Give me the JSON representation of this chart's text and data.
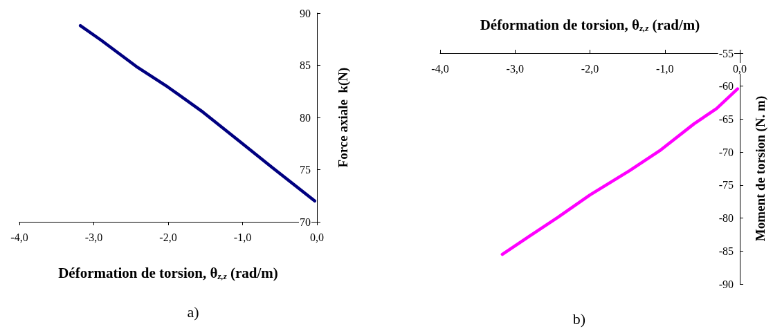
{
  "chart_data": [
    {
      "type": "line",
      "xlabel": "Déformation de torsion, θ$_{z,z}$ (rad/m)",
      "ylabel": "Force axiale  k(N)",
      "annotations": [
        "a)"
      ],
      "xlim": [
        -4,
        0
      ],
      "xticks": [
        {
          "value": -4,
          "label": "-4,0"
        },
        {
          "value": -3,
          "label": "-3,0"
        },
        {
          "value": -2,
          "label": "-2,0"
        },
        {
          "value": -1,
          "label": "-1,0"
        },
        {
          "value": 0,
          "label": "0,0"
        }
      ],
      "ylim": [
        70,
        90
      ],
      "yticks": [
        70,
        75,
        80,
        85,
        90
      ],
      "series": [
        {
          "color": "#000080",
          "x": [
            -3.18,
            -2.9,
            -2.43,
            -2.0,
            -1.53,
            -1.02,
            -0.6,
            -0.03
          ],
          "values": [
            88.8,
            87.4,
            84.9,
            82.9,
            80.5,
            77.6,
            75.2,
            72.0
          ]
        }
      ]
    },
    {
      "type": "line",
      "xlabel": "Déformation de torsion, θ$_{z,z}$ (rad/m)",
      "ylabel": "Moment de torsion (N. m)",
      "annotations": [
        "b)"
      ],
      "xlim": [
        -4,
        0
      ],
      "xticks": [
        {
          "value": -4,
          "label": "-4,0"
        },
        {
          "value": -3,
          "label": "-3,0"
        },
        {
          "value": -2,
          "label": "-2,0"
        },
        {
          "value": -1,
          "label": "-1,0"
        },
        {
          "value": 0,
          "label": "0,0"
        }
      ],
      "ylim": [
        -90,
        -55
      ],
      "yticks": [
        -90,
        -85,
        -80,
        -75,
        -70,
        -65,
        -60,
        -55
      ],
      "series": [
        {
          "color": "#ff00ff",
          "x": [
            -3.17,
            -2.75,
            -2.43,
            -2.0,
            -1.47,
            -1.07,
            -0.61,
            -0.31,
            -0.03
          ],
          "values": [
            -85.5,
            -82.3,
            -79.9,
            -76.5,
            -72.8,
            -69.8,
            -65.7,
            -63.4,
            -60.4
          ]
        }
      ]
    }
  ]
}
